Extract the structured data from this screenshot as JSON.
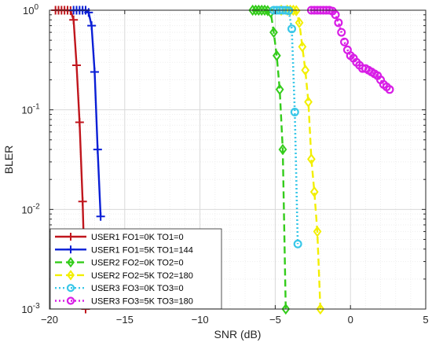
{
  "chart_data": {
    "type": "line",
    "xlabel": "SNR (dB)",
    "ylabel": "BLER",
    "xlim": [
      -20,
      5
    ],
    "ylim": [
      0.001,
      1
    ],
    "yscale": "log",
    "grid": true,
    "legend_position": "bottom-left",
    "xticks": [
      -20,
      -15,
      -10,
      -5,
      0,
      5
    ],
    "yticks": [
      {
        "value": 1,
        "base": "10",
        "exp": "0"
      },
      {
        "value": 0.1,
        "base": "10",
        "exp": "-1"
      },
      {
        "value": 0.01,
        "base": "10",
        "exp": "-2"
      },
      {
        "value": 0.001,
        "base": "10",
        "exp": "-3"
      }
    ],
    "series": [
      {
        "name": "USER1 FO1=0K TO1=0",
        "color": "#c0161d",
        "dash": "solid",
        "marker": "plus",
        "x": [
          -19.6,
          -19.4,
          -19.2,
          -19.0,
          -18.8,
          -18.6,
          -18.4,
          -18.2,
          -18.0,
          -17.8,
          -17.6
        ],
        "y": [
          1.0,
          1.0,
          1.0,
          1.0,
          1.0,
          0.99,
          0.8,
          0.28,
          0.075,
          0.012,
          0.001
        ]
      },
      {
        "name": "USER1 FO1=5K TO1=144",
        "color": "#0a1fd6",
        "dash": "solid",
        "marker": "plus",
        "x": [
          -18.4,
          -18.2,
          -18.0,
          -17.8,
          -17.6,
          -17.4,
          -17.2,
          -17.0,
          -16.8,
          -16.6
        ],
        "y": [
          1.0,
          1.0,
          1.0,
          1.0,
          1.0,
          0.95,
          0.7,
          0.24,
          0.04,
          0.0085
        ]
      },
      {
        "name": "USER2 FO2=0K TO2=0",
        "color": "#33cc1a",
        "dash": "dashed",
        "marker": "diamond",
        "x": [
          -6.5,
          -6.3,
          -6.1,
          -5.9,
          -5.7,
          -5.5,
          -5.3,
          -5.1,
          -4.9,
          -4.7,
          -4.5,
          -4.3
        ],
        "y": [
          1.0,
          1.0,
          1.0,
          1.0,
          1.0,
          0.99,
          0.95,
          0.6,
          0.35,
          0.16,
          0.04,
          0.001
        ]
      },
      {
        "name": "USER2 FO2=5K TO2=180",
        "color": "#f2ef00",
        "dash": "dashed",
        "marker": "diamond",
        "x": [
          -4.6,
          -4.2,
          -4.0,
          -3.8,
          -3.6,
          -3.4,
          -3.2,
          -3.0,
          -2.8,
          -2.6,
          -2.4,
          -2.2,
          -2.0
        ],
        "y": [
          1.0,
          1.0,
          1.0,
          1.0,
          0.99,
          0.75,
          0.43,
          0.25,
          0.12,
          0.032,
          0.015,
          0.006,
          0.001
        ]
      },
      {
        "name": "USER3 FO3=0K TO3=0",
        "color": "#38c7e8",
        "dash": "dotted",
        "marker": "circle",
        "x": [
          -5.1,
          -4.9,
          -4.7,
          -4.5,
          -4.3,
          -4.1,
          -3.9,
          -3.7,
          -3.5
        ],
        "y": [
          1.0,
          1.0,
          1.0,
          1.0,
          1.0,
          0.99,
          0.65,
          0.095,
          0.0045
        ]
      },
      {
        "name": "USER3 FO3=5K TO3=180",
        "color": "#d81ee6",
        "dash": "dotted",
        "marker": "circle",
        "x": [
          -2.6,
          -2.4,
          -2.2,
          -2.0,
          -1.8,
          -1.6,
          -1.4,
          -1.2,
          -1.0,
          -0.8,
          -0.6,
          -0.4,
          -0.2,
          0.0,
          0.2,
          0.4,
          0.6,
          0.8,
          1.0,
          1.2,
          1.4,
          1.6,
          1.8,
          2.0,
          2.2,
          2.4,
          2.6
        ],
        "y": [
          1.0,
          1.0,
          1.0,
          1.0,
          1.0,
          1.0,
          1.0,
          0.98,
          0.9,
          0.75,
          0.6,
          0.48,
          0.4,
          0.35,
          0.33,
          0.3,
          0.28,
          0.26,
          0.26,
          0.25,
          0.24,
          0.23,
          0.22,
          0.2,
          0.18,
          0.17,
          0.16
        ]
      }
    ]
  }
}
